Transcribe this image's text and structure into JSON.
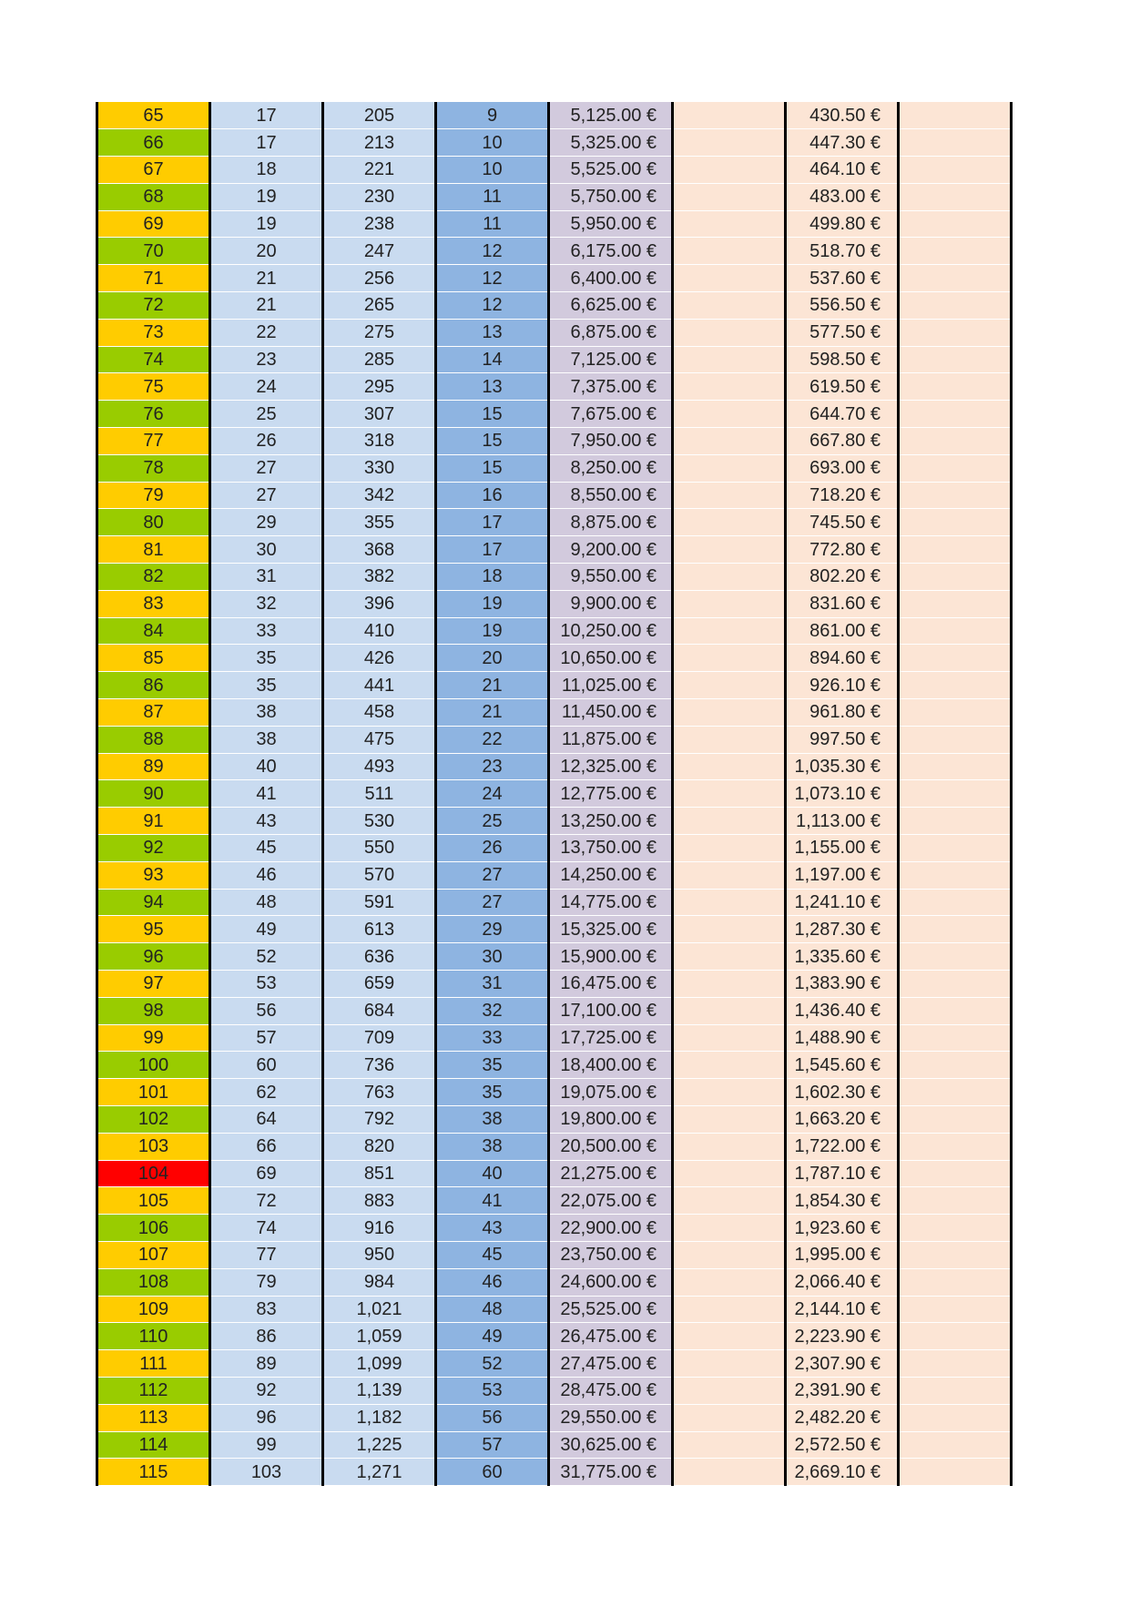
{
  "colors": {
    "yellow": "#ffcc00",
    "green": "#99cc00",
    "red": "#ff0000",
    "light_blue": "#c9dbf0",
    "mid_blue": "#8eb4e1",
    "lavender": "#d2cadd",
    "peach": "#fce5d5"
  },
  "rows": [
    {
      "id": "65",
      "a": "17",
      "b": "205",
      "c": "9",
      "amount": "5,125.00 €",
      "fee": "430.50 €",
      "color": "yellow"
    },
    {
      "id": "66",
      "a": "17",
      "b": "213",
      "c": "10",
      "amount": "5,325.00 €",
      "fee": "447.30 €",
      "color": "green"
    },
    {
      "id": "67",
      "a": "18",
      "b": "221",
      "c": "10",
      "amount": "5,525.00 €",
      "fee": "464.10 €",
      "color": "yellow"
    },
    {
      "id": "68",
      "a": "19",
      "b": "230",
      "c": "11",
      "amount": "5,750.00 €",
      "fee": "483.00 €",
      "color": "green"
    },
    {
      "id": "69",
      "a": "19",
      "b": "238",
      "c": "11",
      "amount": "5,950.00 €",
      "fee": "499.80 €",
      "color": "yellow"
    },
    {
      "id": "70",
      "a": "20",
      "b": "247",
      "c": "12",
      "amount": "6,175.00 €",
      "fee": "518.70 €",
      "color": "green"
    },
    {
      "id": "71",
      "a": "21",
      "b": "256",
      "c": "12",
      "amount": "6,400.00 €",
      "fee": "537.60 €",
      "color": "yellow"
    },
    {
      "id": "72",
      "a": "21",
      "b": "265",
      "c": "12",
      "amount": "6,625.00 €",
      "fee": "556.50 €",
      "color": "green"
    },
    {
      "id": "73",
      "a": "22",
      "b": "275",
      "c": "13",
      "amount": "6,875.00 €",
      "fee": "577.50 €",
      "color": "yellow"
    },
    {
      "id": "74",
      "a": "23",
      "b": "285",
      "c": "14",
      "amount": "7,125.00 €",
      "fee": "598.50 €",
      "color": "green"
    },
    {
      "id": "75",
      "a": "24",
      "b": "295",
      "c": "13",
      "amount": "7,375.00 €",
      "fee": "619.50 €",
      "color": "yellow"
    },
    {
      "id": "76",
      "a": "25",
      "b": "307",
      "c": "15",
      "amount": "7,675.00 €",
      "fee": "644.70 €",
      "color": "green"
    },
    {
      "id": "77",
      "a": "26",
      "b": "318",
      "c": "15",
      "amount": "7,950.00 €",
      "fee": "667.80 €",
      "color": "yellow"
    },
    {
      "id": "78",
      "a": "27",
      "b": "330",
      "c": "15",
      "amount": "8,250.00 €",
      "fee": "693.00 €",
      "color": "green"
    },
    {
      "id": "79",
      "a": "27",
      "b": "342",
      "c": "16",
      "amount": "8,550.00 €",
      "fee": "718.20 €",
      "color": "yellow"
    },
    {
      "id": "80",
      "a": "29",
      "b": "355",
      "c": "17",
      "amount": "8,875.00 €",
      "fee": "745.50 €",
      "color": "green"
    },
    {
      "id": "81",
      "a": "30",
      "b": "368",
      "c": "17",
      "amount": "9,200.00 €",
      "fee": "772.80 €",
      "color": "yellow"
    },
    {
      "id": "82",
      "a": "31",
      "b": "382",
      "c": "18",
      "amount": "9,550.00 €",
      "fee": "802.20 €",
      "color": "green"
    },
    {
      "id": "83",
      "a": "32",
      "b": "396",
      "c": "19",
      "amount": "9,900.00 €",
      "fee": "831.60 €",
      "color": "yellow"
    },
    {
      "id": "84",
      "a": "33",
      "b": "410",
      "c": "19",
      "amount": "10,250.00 €",
      "fee": "861.00 €",
      "color": "green"
    },
    {
      "id": "85",
      "a": "35",
      "b": "426",
      "c": "20",
      "amount": "10,650.00 €",
      "fee": "894.60 €",
      "color": "yellow"
    },
    {
      "id": "86",
      "a": "35",
      "b": "441",
      "c": "21",
      "amount": "11,025.00 €",
      "fee": "926.10 €",
      "color": "green"
    },
    {
      "id": "87",
      "a": "38",
      "b": "458",
      "c": "21",
      "amount": "11,450.00 €",
      "fee": "961.80 €",
      "color": "yellow"
    },
    {
      "id": "88",
      "a": "38",
      "b": "475",
      "c": "22",
      "amount": "11,875.00 €",
      "fee": "997.50 €",
      "color": "green"
    },
    {
      "id": "89",
      "a": "40",
      "b": "493",
      "c": "23",
      "amount": "12,325.00 €",
      "fee": "1,035.30 €",
      "color": "yellow"
    },
    {
      "id": "90",
      "a": "41",
      "b": "511",
      "c": "24",
      "amount": "12,775.00 €",
      "fee": "1,073.10 €",
      "color": "green"
    },
    {
      "id": "91",
      "a": "43",
      "b": "530",
      "c": "25",
      "amount": "13,250.00 €",
      "fee": "1,113.00 €",
      "color": "yellow"
    },
    {
      "id": "92",
      "a": "45",
      "b": "550",
      "c": "26",
      "amount": "13,750.00 €",
      "fee": "1,155.00 €",
      "color": "green"
    },
    {
      "id": "93",
      "a": "46",
      "b": "570",
      "c": "27",
      "amount": "14,250.00 €",
      "fee": "1,197.00 €",
      "color": "yellow"
    },
    {
      "id": "94",
      "a": "48",
      "b": "591",
      "c": "27",
      "amount": "14,775.00 €",
      "fee": "1,241.10 €",
      "color": "green"
    },
    {
      "id": "95",
      "a": "49",
      "b": "613",
      "c": "29",
      "amount": "15,325.00 €",
      "fee": "1,287.30 €",
      "color": "yellow"
    },
    {
      "id": "96",
      "a": "52",
      "b": "636",
      "c": "30",
      "amount": "15,900.00 €",
      "fee": "1,335.60 €",
      "color": "green"
    },
    {
      "id": "97",
      "a": "53",
      "b": "659",
      "c": "31",
      "amount": "16,475.00 €",
      "fee": "1,383.90 €",
      "color": "yellow"
    },
    {
      "id": "98",
      "a": "56",
      "b": "684",
      "c": "32",
      "amount": "17,100.00 €",
      "fee": "1,436.40 €",
      "color": "green"
    },
    {
      "id": "99",
      "a": "57",
      "b": "709",
      "c": "33",
      "amount": "17,725.00 €",
      "fee": "1,488.90 €",
      "color": "yellow"
    },
    {
      "id": "100",
      "a": "60",
      "b": "736",
      "c": "35",
      "amount": "18,400.00 €",
      "fee": "1,545.60 €",
      "color": "green"
    },
    {
      "id": "101",
      "a": "62",
      "b": "763",
      "c": "35",
      "amount": "19,075.00 €",
      "fee": "1,602.30 €",
      "color": "yellow"
    },
    {
      "id": "102",
      "a": "64",
      "b": "792",
      "c": "38",
      "amount": "19,800.00 €",
      "fee": "1,663.20 €",
      "color": "green"
    },
    {
      "id": "103",
      "a": "66",
      "b": "820",
      "c": "38",
      "amount": "20,500.00 €",
      "fee": "1,722.00 €",
      "color": "yellow"
    },
    {
      "id": "104",
      "a": "69",
      "b": "851",
      "c": "40",
      "amount": "21,275.00 €",
      "fee": "1,787.10 €",
      "color": "red"
    },
    {
      "id": "105",
      "a": "72",
      "b": "883",
      "c": "41",
      "amount": "22,075.00 €",
      "fee": "1,854.30 €",
      "color": "yellow"
    },
    {
      "id": "106",
      "a": "74",
      "b": "916",
      "c": "43",
      "amount": "22,900.00 €",
      "fee": "1,923.60 €",
      "color": "green"
    },
    {
      "id": "107",
      "a": "77",
      "b": "950",
      "c": "45",
      "amount": "23,750.00 €",
      "fee": "1,995.00 €",
      "color": "yellow"
    },
    {
      "id": "108",
      "a": "79",
      "b": "984",
      "c": "46",
      "amount": "24,600.00 €",
      "fee": "2,066.40 €",
      "color": "green"
    },
    {
      "id": "109",
      "a": "83",
      "b": "1,021",
      "c": "48",
      "amount": "25,525.00 €",
      "fee": "2,144.10 €",
      "color": "yellow"
    },
    {
      "id": "110",
      "a": "86",
      "b": "1,059",
      "c": "49",
      "amount": "26,475.00 €",
      "fee": "2,223.90 €",
      "color": "green"
    },
    {
      "id": "111",
      "a": "89",
      "b": "1,099",
      "c": "52",
      "amount": "27,475.00 €",
      "fee": "2,307.90 €",
      "color": "yellow"
    },
    {
      "id": "112",
      "a": "92",
      "b": "1,139",
      "c": "53",
      "amount": "28,475.00 €",
      "fee": "2,391.90 €",
      "color": "green"
    },
    {
      "id": "113",
      "a": "96",
      "b": "1,182",
      "c": "56",
      "amount": "29,550.00 €",
      "fee": "2,482.20 €",
      "color": "yellow"
    },
    {
      "id": "114",
      "a": "99",
      "b": "1,225",
      "c": "57",
      "amount": "30,625.00 €",
      "fee": "2,572.50 €",
      "color": "green"
    },
    {
      "id": "115",
      "a": "103",
      "b": "1,271",
      "c": "60",
      "amount": "31,775.00 €",
      "fee": "2,669.10 €",
      "color": "yellow"
    }
  ]
}
